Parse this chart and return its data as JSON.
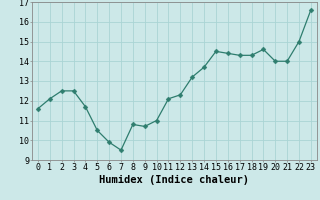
{
  "x": [
    0,
    1,
    2,
    3,
    4,
    5,
    6,
    7,
    8,
    9,
    10,
    11,
    12,
    13,
    14,
    15,
    16,
    17,
    18,
    19,
    20,
    21,
    22,
    23
  ],
  "y": [
    11.6,
    12.1,
    12.5,
    12.5,
    11.7,
    10.5,
    9.9,
    9.5,
    10.8,
    10.7,
    11.0,
    12.1,
    12.3,
    13.2,
    13.7,
    14.5,
    14.4,
    14.3,
    14.3,
    14.6,
    14.0,
    14.0,
    15.0,
    16.6
  ],
  "line_color": "#2e7d6e",
  "marker": "D",
  "marker_size": 2.5,
  "bg_color": "#cce8e8",
  "grid_color": "#aad4d4",
  "xlabel": "Humidex (Indice chaleur)",
  "xlabel_fontsize": 7.5,
  "tick_fontsize": 6,
  "ylim": [
    9,
    17
  ],
  "xlim": [
    -0.5,
    23.5
  ],
  "yticks": [
    9,
    10,
    11,
    12,
    13,
    14,
    15,
    16,
    17
  ],
  "xticks": [
    0,
    1,
    2,
    3,
    4,
    5,
    6,
    7,
    8,
    9,
    10,
    11,
    12,
    13,
    14,
    15,
    16,
    17,
    18,
    19,
    20,
    21,
    22,
    23
  ],
  "line_width": 0.9
}
